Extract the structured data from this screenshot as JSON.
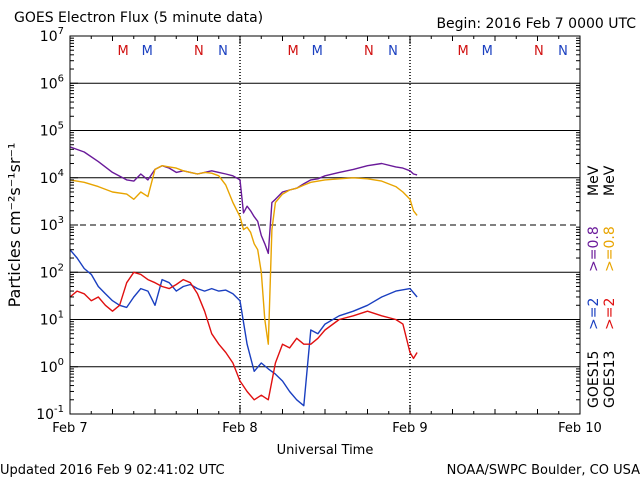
{
  "chart_data": {
    "type": "line",
    "title": "GOES Electron Flux (5 minute data)",
    "begin_label": "Begin: 2016 Feb 7 0000 UTC",
    "xlabel": "Universal Time",
    "ylabel": "Particles cm⁻²s⁻¹sr⁻¹",
    "x_unit": "hours since 2016 Feb 7 00:00 UTC",
    "xlim": [
      0,
      72
    ],
    "x_ticks": [
      {
        "x": 0,
        "label": "Feb 7"
      },
      {
        "x": 24,
        "label": "Feb 8"
      },
      {
        "x": 48,
        "label": "Feb 9"
      },
      {
        "x": 72,
        "label": "Feb 10"
      }
    ],
    "y_scale": "log",
    "ylim": [
      0.1,
      10000000
    ],
    "y_tick_exponents": [
      -1,
      0,
      1,
      2,
      3,
      4,
      5,
      6,
      7
    ],
    "threshold_line": 1000,
    "grid": true,
    "noon_markers": [
      {
        "x": 7.5,
        "label": "M",
        "color": "#d01010"
      },
      {
        "x": 10.9,
        "label": "M",
        "color": "#1a3fc0"
      },
      {
        "x": 18.2,
        "label": "N",
        "color": "#d01010"
      },
      {
        "x": 21.6,
        "label": "N",
        "color": "#1a3fc0"
      },
      {
        "x": 31.5,
        "label": "M",
        "color": "#d01010"
      },
      {
        "x": 34.9,
        "label": "M",
        "color": "#1a3fc0"
      },
      {
        "x": 42.2,
        "label": "N",
        "color": "#d01010"
      },
      {
        "x": 45.6,
        "label": "N",
        "color": "#1a3fc0"
      },
      {
        "x": 55.5,
        "label": "M",
        "color": "#d01010"
      },
      {
        "x": 58.9,
        "label": "M",
        "color": "#1a3fc0"
      },
      {
        "x": 66.2,
        "label": "N",
        "color": "#d01010"
      },
      {
        "x": 69.6,
        "label": "N",
        "color": "#1a3fc0"
      }
    ],
    "legend": [
      {
        "text": "GOES15",
        "color": "#000000"
      },
      {
        "text": "GOES13",
        "color": "#000000"
      },
      {
        "text": ">=2",
        "color": "#1a3fc0"
      },
      {
        "text": ">=2",
        "color": "#e01010"
      },
      {
        "text": ">=0.8",
        "color": "#6a1a9a"
      },
      {
        "text": ">=0.8",
        "color": "#e8a400"
      },
      {
        "text": "MeV",
        "color": "#000000"
      },
      {
        "text": "MeV",
        "color": "#000000"
      }
    ],
    "series": [
      {
        "name": "GOES15 >=0.8 MeV",
        "color": "#6a1a9a",
        "x": [
          0,
          2,
          4,
          6,
          8,
          9,
          10,
          11,
          12,
          13,
          14,
          15,
          16,
          17,
          18,
          19,
          20,
          21,
          22,
          23,
          24,
          24.5,
          25,
          25.5,
          26,
          26.5,
          27,
          27.5,
          28,
          28.5,
          29,
          30,
          31,
          32,
          33,
          34,
          35,
          36,
          38,
          40,
          42,
          44,
          46,
          47,
          48,
          48.5,
          49
        ],
        "y": [
          45000,
          35000,
          22000,
          13000,
          9000,
          8500,
          12000,
          9000,
          15000,
          18000,
          16000,
          13000,
          14000,
          13000,
          12000,
          13000,
          14000,
          13000,
          12000,
          11000,
          9000,
          1800,
          2500,
          2000,
          1500,
          1200,
          600,
          400,
          250,
          3000,
          3500,
          5000,
          5500,
          6000,
          7500,
          9000,
          9500,
          11000,
          13000,
          15000,
          18000,
          20000,
          17000,
          16000,
          14000,
          12000,
          11500
        ]
      },
      {
        "name": "GOES13 >=0.8 MeV",
        "color": "#e8a400",
        "x": [
          0,
          2,
          4,
          6,
          8,
          9,
          10,
          11,
          12,
          13,
          14,
          15,
          16,
          17,
          18,
          19,
          20,
          21,
          22,
          23,
          24,
          24.5,
          25,
          25.5,
          26,
          26.5,
          27,
          27.5,
          28,
          28.5,
          29,
          30,
          31,
          32,
          33,
          34,
          36,
          38,
          40,
          42,
          44,
          46,
          47,
          48,
          48.5,
          49
        ],
        "y": [
          9000,
          8000,
          6500,
          5000,
          4500,
          3500,
          5000,
          4000,
          15000,
          18000,
          17000,
          16000,
          14000,
          13000,
          12000,
          13000,
          12500,
          11000,
          7000,
          3000,
          1500,
          800,
          900,
          700,
          400,
          300,
          100,
          10,
          3,
          800,
          3000,
          4500,
          5500,
          6000,
          7000,
          8000,
          9000,
          9500,
          10000,
          9500,
          8500,
          6500,
          5000,
          3500,
          2000,
          1600
        ]
      },
      {
        "name": "GOES15 >=2 MeV",
        "color": "#1a3fc0",
        "x": [
          0,
          1,
          2,
          3,
          4,
          5,
          6,
          7,
          8,
          9,
          10,
          11,
          12,
          13,
          14,
          15,
          16,
          17,
          18,
          19,
          20,
          21,
          22,
          23,
          24,
          25,
          26,
          27,
          28,
          29,
          30,
          31,
          32,
          33,
          34,
          35,
          36,
          38,
          40,
          42,
          44,
          46,
          48,
          49
        ],
        "y": [
          300,
          200,
          120,
          90,
          50,
          35,
          25,
          20,
          18,
          30,
          45,
          40,
          20,
          70,
          60,
          40,
          50,
          55,
          45,
          40,
          45,
          40,
          42,
          35,
          25,
          3,
          0.8,
          1.2,
          0.9,
          0.7,
          0.5,
          0.3,
          0.2,
          0.15,
          6,
          5,
          8,
          12,
          15,
          20,
          30,
          40,
          45,
          30
        ]
      },
      {
        "name": "GOES13 >=2 MeV",
        "color": "#e01010",
        "x": [
          0,
          1,
          2,
          3,
          4,
          5,
          6,
          7,
          8,
          9,
          10,
          11,
          12,
          13,
          14,
          15,
          16,
          17,
          18,
          19,
          20,
          21,
          22,
          23,
          24,
          25,
          26,
          27,
          28,
          29,
          30,
          31,
          32,
          33,
          34,
          35,
          36,
          38,
          40,
          42,
          44,
          46,
          47,
          48,
          48.5,
          49
        ],
        "y": [
          30,
          40,
          35,
          25,
          30,
          20,
          15,
          20,
          60,
          100,
          90,
          70,
          60,
          50,
          45,
          55,
          70,
          60,
          35,
          15,
          5,
          3,
          2,
          1.2,
          0.5,
          0.3,
          0.2,
          0.25,
          0.2,
          1.2,
          3,
          2.5,
          4,
          3,
          3,
          4,
          6,
          10,
          12,
          15,
          12,
          10,
          8,
          2,
          1.5,
          2
        ]
      }
    ]
  },
  "footer": {
    "updated": "Updated 2016 Feb  9 02:41:02 UTC",
    "source": "NOAA/SWPC Boulder, CO USA"
  }
}
